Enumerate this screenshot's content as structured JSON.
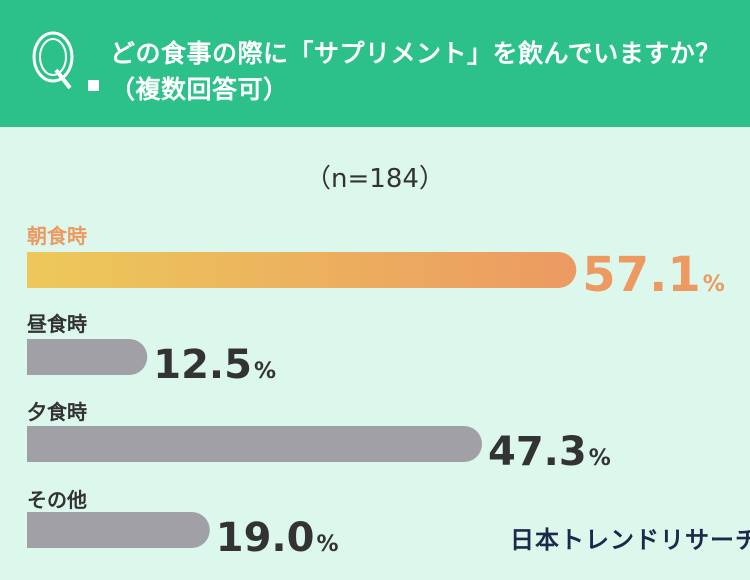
{
  "header": {
    "q_letter": "Q",
    "question_line1": "どの食事の際に「サプリメント」を飲んでいますか？",
    "question_line2": "（複数回答可）"
  },
  "sample_size": "（n=184）",
  "brand": "日本トレンドリサーチ",
  "colors": {
    "header_bg": "#2cc189",
    "page_bg": "#dcf7ec",
    "highlight_start": "#ecc95a",
    "highlight_end": "#ec9a62",
    "highlight_text": "#ec9a62",
    "bar_gray": "#a0a0a6",
    "text_dark": "#333333"
  },
  "chart_data": {
    "type": "bar",
    "orientation": "horizontal",
    "categories": [
      "朝食時",
      "昼食時",
      "夕食時",
      "その他"
    ],
    "values": [
      57.1,
      12.5,
      47.3,
      19.0
    ],
    "value_labels": [
      "57.1",
      "12.5",
      "47.3",
      "19.0"
    ],
    "unit": "%",
    "highlight_index": 0,
    "xlim": [
      0,
      100
    ]
  }
}
